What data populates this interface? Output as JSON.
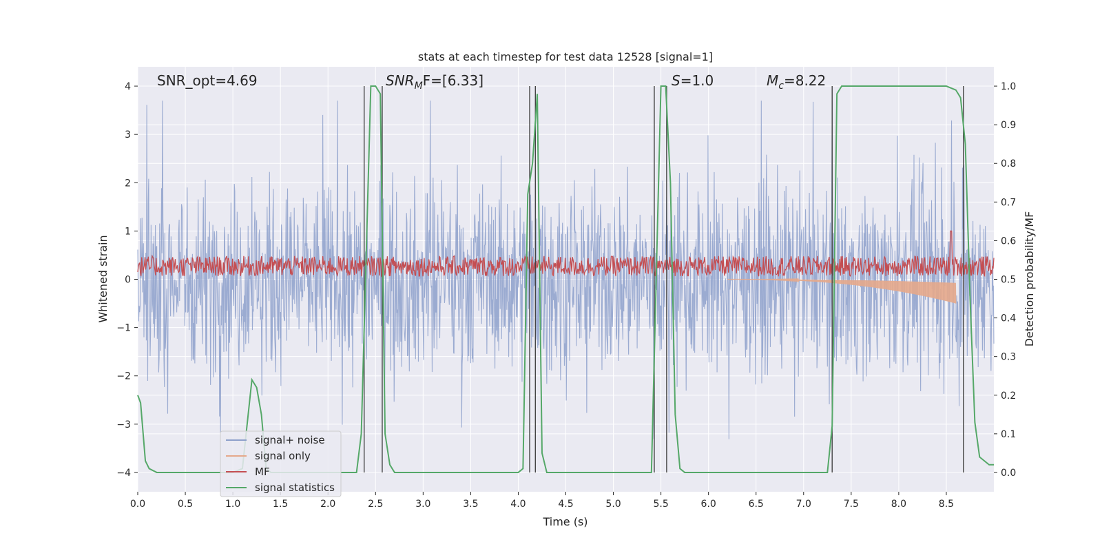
{
  "chart_data": {
    "type": "line",
    "title": "stats at each timestep for test data 12528 [signal=1]",
    "xlabel": "Time (s)",
    "ylabel": "Whitened strain",
    "y2label": "Detection probability/MF",
    "xlim": [
      0.0,
      9.0
    ],
    "ylim": [
      -4.4,
      4.4
    ],
    "y2lim": [
      -0.05,
      1.05
    ],
    "x_ticks": [
      0.0,
      0.5,
      1.0,
      1.5,
      2.0,
      2.5,
      3.0,
      3.5,
      4.0,
      4.5,
      5.0,
      5.5,
      6.0,
      6.5,
      7.0,
      7.5,
      8.0,
      8.5
    ],
    "x_tick_labels": [
      "0.0",
      "0.5",
      "1.0",
      "1.5",
      "2.0",
      "2.5",
      "3.0",
      "3.5",
      "4.0",
      "4.5",
      "5.0",
      "5.5",
      "6.0",
      "6.5",
      "7.0",
      "7.5",
      "8.0",
      "8.5"
    ],
    "y_ticks": [
      -4,
      -3,
      -2,
      -1,
      0,
      1,
      2,
      3,
      4
    ],
    "y_tick_labels": [
      "−4",
      "−3",
      "−2",
      "−1",
      "0",
      "1",
      "2",
      "3",
      "4"
    ],
    "y2_ticks": [
      0.0,
      0.1,
      0.2,
      0.3,
      0.4,
      0.5,
      0.6,
      0.7,
      0.8,
      0.9,
      1.0
    ],
    "y2_tick_labels": [
      "0.0",
      "0.1",
      "0.2",
      "0.3",
      "0.4",
      "0.5",
      "0.6",
      "0.7",
      "0.8",
      "0.9",
      "1.0"
    ],
    "annotations": {
      "snr_opt": "SNR_opt=4.69",
      "snr_mf_prefix": "SNR",
      "snr_mf_sub": "M",
      "snr_mf_suffix": "F=[6.33]",
      "s_symbol": "S",
      "s_value": "=1.0",
      "mc_symbol": "M",
      "mc_sub": "c",
      "mc_value": "=8.22"
    },
    "legend": {
      "position": "lower-left",
      "entries": [
        {
          "label": "signal+ noise",
          "color": "#8da0cb"
        },
        {
          "label": "signal only",
          "color": "#e5a98b"
        },
        {
          "label": "MF",
          "color": "#c44e52"
        },
        {
          "label": "signal statistics",
          "color": "#55a868"
        }
      ]
    },
    "series": [
      {
        "name": "signal+ noise",
        "kind": "noise",
        "axis": "left",
        "color": "#8da0cb",
        "amplitude_range": [
          -4.0,
          3.7
        ]
      },
      {
        "name": "signal only",
        "kind": "chirp",
        "axis": "left",
        "color": "#e5a98b",
        "start": 6.2,
        "end": 8.6,
        "peak": -0.5
      },
      {
        "name": "MF",
        "kind": "mf",
        "axis": "left",
        "color": "#c44e52",
        "baseline": 0.25,
        "peak_x": 8.55,
        "peak_y": 1.0
      },
      {
        "name": "signal statistics",
        "axis": "right",
        "color": "#55a868",
        "x": [
          0.0,
          0.03,
          0.08,
          0.12,
          0.2,
          0.3,
          0.5,
          1.0,
          1.1,
          1.2,
          1.25,
          1.3,
          1.35,
          1.4,
          2.0,
          2.3,
          2.35,
          2.4,
          2.45,
          2.5,
          2.55,
          2.6,
          2.65,
          2.7,
          3.0,
          4.0,
          4.05,
          4.1,
          4.15,
          4.2,
          4.25,
          4.3,
          5.0,
          5.4,
          5.45,
          5.5,
          5.55,
          5.6,
          5.65,
          5.7,
          5.75,
          6.0,
          7.0,
          7.25,
          7.3,
          7.35,
          7.4,
          8.0,
          8.5,
          8.6,
          8.65,
          8.7,
          8.75,
          8.8,
          8.85,
          8.95,
          9.0
        ],
        "y": [
          0.2,
          0.18,
          0.03,
          0.01,
          0.0,
          0.0,
          0.0,
          0.0,
          0.01,
          0.24,
          0.22,
          0.15,
          0.01,
          0.0,
          0.0,
          0.0,
          0.1,
          0.55,
          1.0,
          1.0,
          0.98,
          0.1,
          0.02,
          0.0,
          0.0,
          0.0,
          0.01,
          0.72,
          0.8,
          0.98,
          0.05,
          0.0,
          0.0,
          0.0,
          0.5,
          1.0,
          1.0,
          0.75,
          0.15,
          0.01,
          0.0,
          0.0,
          0.0,
          0.0,
          0.12,
          0.98,
          1.0,
          1.0,
          1.0,
          0.99,
          0.97,
          0.85,
          0.45,
          0.13,
          0.04,
          0.02,
          0.02
        ]
      }
    ],
    "vlines_x": [
      2.38,
      2.57,
      4.12,
      4.18,
      5.43,
      5.56,
      7.3,
      8.68
    ]
  }
}
